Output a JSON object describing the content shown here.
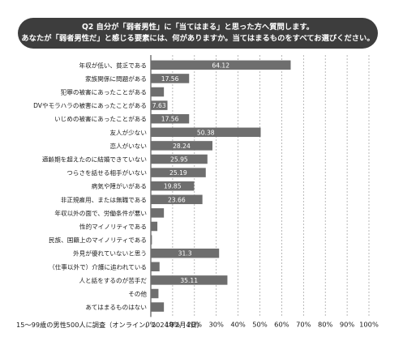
{
  "header": {
    "line1": "Q2 自分が「弱者男性」に「当てはまる」と思った方へ質問します。",
    "line2": "あなたが「弱者男性だ」と感じる要素には、何がありますか。当てはまるものをすべてお選びください。"
  },
  "chart_data": {
    "type": "bar",
    "orientation": "horizontal",
    "categories": [
      "年収が低い、貧乏である",
      "家族関係に問題がある",
      "犯罪の被害にあったことがある",
      "DVやモラハラの被害にあったことがある",
      "いじめの被害にあったことがある",
      "友人が少ない",
      "恋人がいない",
      "適齢期を超えたのに結婚できていない",
      "つらさを話せる相手がいない",
      "病気や障がいがある",
      "非正規雇用、または無職である",
      "年収以外の面で、労働条件が悪い",
      "性的マイノリティである",
      "民族、国籍上のマイノリティである",
      "外見が優れていないと思う",
      "（仕事以外で）介護に追われている",
      "人と話をするのが苦手だ",
      "その他",
      "あてはまるものはない"
    ],
    "values": [
      64.12,
      17.56,
      6,
      7.63,
      17.56,
      50.38,
      28.24,
      25.95,
      25.19,
      19.85,
      23.66,
      6,
      3,
      0.5,
      31.3,
      4,
      35.11,
      3.5,
      6
    ],
    "data_labels": [
      "64.12",
      "17.56",
      "",
      "7.63",
      "17.56",
      "50.38",
      "28.24",
      "25.95",
      "25.19",
      "19.85",
      "23.66",
      "",
      "",
      "",
      "31.3",
      "",
      "35.11",
      "",
      ""
    ],
    "x_ticks": [
      "0%",
      "10%",
      "20%",
      "30%",
      "40%",
      "50%",
      "60%",
      "70%",
      "80%",
      "90%",
      "100%"
    ],
    "xlim": [
      0,
      100
    ],
    "bar_color": "#6e6e6e",
    "grid": "dashed vertical"
  },
  "footnote": "15～99歳の男性500人に調査（オンライン、2024年2月4日）"
}
